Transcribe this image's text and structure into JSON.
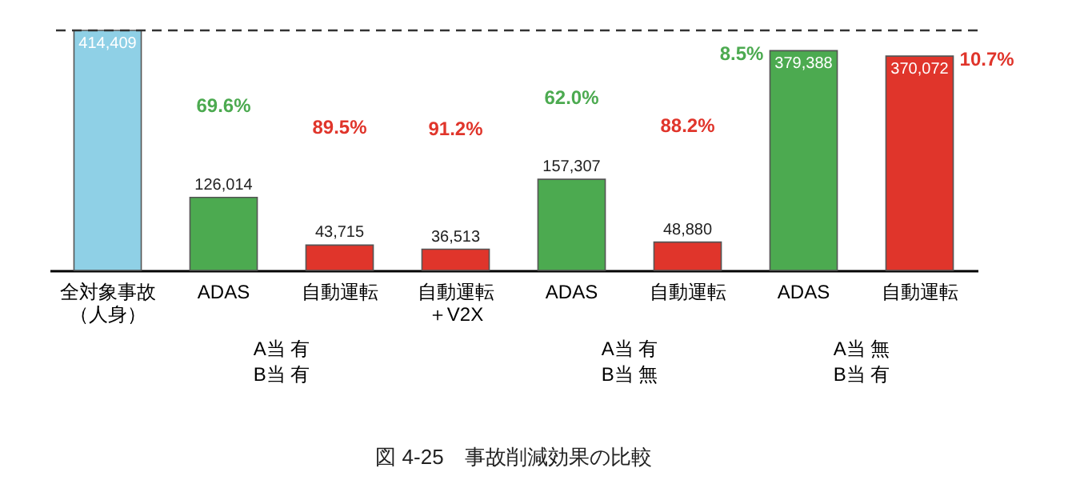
{
  "chart_data": {
    "type": "bar",
    "title": "図 4-25　事故削減効果の比較",
    "categories": [
      "全対象事故（人身）",
      "ADAS",
      "自動運転",
      "自動運転＋V2X",
      "ADAS",
      "自動運転",
      "ADAS",
      "自動運転"
    ],
    "values": [
      414409,
      126014,
      43715,
      36513,
      157307,
      48880,
      379388,
      370072
    ],
    "colors": [
      "#8fd0e6",
      "#4caa50",
      "#e0352b",
      "#e0352b",
      "#4caa50",
      "#e0352b",
      "#4caa50",
      "#e0352b"
    ],
    "value_labels": [
      "414,409",
      "126,014",
      "43,715",
      "36,513",
      "157,307",
      "48,880",
      "379,388",
      "370,072"
    ],
    "annotations": [
      "69.6%",
      "89.5%",
      "91.2%",
      "62.0%",
      "88.2%",
      "8.5%",
      "10.7%",
      "A当 有\nB当 有",
      "A当 有\nB当 無",
      "A当 無\nB当 有"
    ],
    "ref_lines": [
      {
        "axis": "y",
        "value": 414409,
        "line_style": "dashed",
        "color": "#333333"
      }
    ]
  }
}
